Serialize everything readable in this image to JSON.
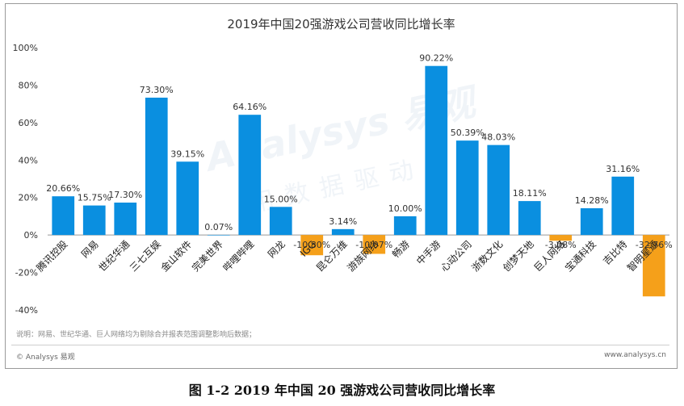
{
  "chart_data": {
    "type": "bar",
    "title": "2019年中国20强游戏公司营收同比增长率",
    "categories": [
      "腾讯控股",
      "网易",
      "世纪华通",
      "三七互娱",
      "金山软件",
      "完美世界",
      "哔哩哔哩",
      "网龙",
      "IGG",
      "昆仑万维",
      "游族网络",
      "畅游",
      "中手游",
      "心动公司",
      "浙数文化",
      "创梦天地",
      "巨人网络",
      "宝通科技",
      "吉比特",
      "智明星通"
    ],
    "values": [
      20.66,
      15.75,
      17.3,
      73.3,
      39.15,
      0.07,
      64.16,
      15.0,
      -10.8,
      3.14,
      -10.07,
      10.0,
      90.22,
      50.39,
      48.03,
      18.11,
      -3.08,
      14.28,
      31.16,
      -32.76
    ],
    "value_labels": [
      "20.66%",
      "15.75%",
      "17.30%",
      "73.30%",
      "39.15%",
      "0.07%",
      "64.16%",
      "15.00%",
      "-10.80%",
      "3.14%",
      "-10.07%",
      "10.00%",
      "90.22%",
      "50.39%",
      "48.03%",
      "18.11%",
      "-3.08%",
      "14.28%",
      "31.16%",
      "-32.76%"
    ],
    "ylim": [
      -40,
      100
    ],
    "yticks": [
      -40,
      -20,
      0,
      20,
      40,
      60,
      80,
      100
    ],
    "ytick_labels": [
      "-40%",
      "-20%",
      "0%",
      "20%",
      "40%",
      "60%",
      "80%",
      "100%"
    ],
    "xlabel": "",
    "ylabel": "",
    "colors": {
      "positive": "#0a8fe0",
      "negative": "#f5a01a"
    },
    "grid": false,
    "legend": "none"
  },
  "note": "说明：网易、世纪华通、巨人网络均为剔除合并报表范围调整影响后数据；",
  "source_left": "© Analysys 易观",
  "source_right": "www.analysys.cn",
  "watermark": {
    "logo_text": "Analysys 易观",
    "tagline": "用数据驱动"
  },
  "caption": "图 1-2 2019 年中国 20 强游戏公司营收同比增长率"
}
